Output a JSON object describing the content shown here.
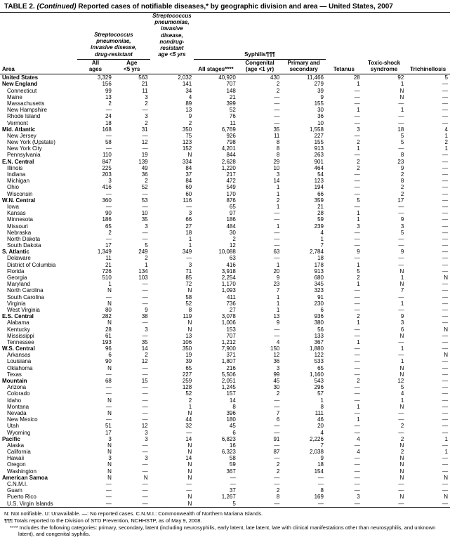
{
  "title_prefix": "TABLE 2.",
  "title_cont": "(Continued)",
  "title_rest": " Reported cases of notifiable diseases,* by geographic division and area — United States, 2007",
  "headers": {
    "strep_inv": "Streptococcus\npneumoniae,\ninvasive disease,\ndrug-resistant",
    "strep_noninv": "Streptococcus\npneumoniae,\ninvasive disease,\nnondrug-resistant\nage <5 yrs",
    "syphilis": "Syphilis¶¶¶",
    "area": "Area",
    "all_ages": "All\nages",
    "age_lt5": "Age\n<5 yrs",
    "all_stages": "All stages****",
    "congenital": "Congenital\n(age <1 yr)",
    "primary_secondary": "Primary and\nsecondary",
    "tetanus": "Tetanus",
    "toxic_shock": "Toxic-shock\nsyndrome",
    "trichinellosis": "Trichinellosis"
  },
  "rows": [
    {
      "t": "nation",
      "a": "United States",
      "v": [
        "3,329",
        "563",
        "2,032",
        "40,920",
        "430",
        "11,466",
        "28",
        "92",
        "5"
      ]
    },
    {
      "t": "region",
      "a": "New England",
      "v": [
        "156",
        "21",
        "141",
        "707",
        "2",
        "279",
        "1",
        "1",
        "—"
      ]
    },
    {
      "t": "sub",
      "a": "Connecticut",
      "v": [
        "99",
        "11",
        "34",
        "148",
        "2",
        "39",
        "—",
        "N",
        "—"
      ]
    },
    {
      "t": "sub",
      "a": "Maine",
      "v": [
        "13",
        "3",
        "4",
        "21",
        "—",
        "9",
        "—",
        "N",
        "—"
      ]
    },
    {
      "t": "sub",
      "a": "Massachusetts",
      "v": [
        "2",
        "2",
        "89",
        "399",
        "—",
        "155",
        "—",
        "—",
        "—"
      ]
    },
    {
      "t": "sub",
      "a": "New Hampshire",
      "v": [
        "—",
        "—",
        "13",
        "52",
        "—",
        "30",
        "1",
        "1",
        "—"
      ]
    },
    {
      "t": "sub",
      "a": "Rhode Island",
      "v": [
        "24",
        "3",
        "9",
        "76",
        "—",
        "36",
        "—",
        "—",
        "—"
      ]
    },
    {
      "t": "sub",
      "a": "Vermont",
      "v": [
        "18",
        "2",
        "2",
        "11",
        "—",
        "10",
        "—",
        "—",
        "—"
      ]
    },
    {
      "t": "region",
      "a": "Mid. Atlantic",
      "v": [
        "168",
        "31",
        "350",
        "6,769",
        "35",
        "1,558",
        "3",
        "18",
        "4"
      ]
    },
    {
      "t": "sub",
      "a": "New Jersey",
      "v": [
        "—",
        "—",
        "75",
        "926",
        "11",
        "227",
        "—",
        "5",
        "1"
      ]
    },
    {
      "t": "sub",
      "a": "New York (Upstate)",
      "v": [
        "58",
        "12",
        "123",
        "798",
        "8",
        "155",
        "2",
        "5",
        "2"
      ]
    },
    {
      "t": "sub",
      "a": "New York City",
      "v": [
        "—",
        "—",
        "152",
        "4,201",
        "8",
        "913",
        "1",
        "—",
        "1"
      ]
    },
    {
      "t": "sub",
      "a": "Pennsylvania",
      "v": [
        "110",
        "19",
        "N",
        "844",
        "8",
        "263",
        "—",
        "8",
        "—"
      ]
    },
    {
      "t": "region",
      "a": "E.N. Central",
      "v": [
        "847",
        "139",
        "334",
        "2,628",
        "29",
        "901",
        "2",
        "23",
        "—"
      ]
    },
    {
      "t": "sub",
      "a": "Illinois",
      "v": [
        "225",
        "49",
        "84",
        "1,220",
        "10",
        "464",
        "2",
        "9",
        "—"
      ]
    },
    {
      "t": "sub",
      "a": "Indiana",
      "v": [
        "203",
        "36",
        "37",
        "217",
        "3",
        "54",
        "—",
        "2",
        "—"
      ]
    },
    {
      "t": "sub",
      "a": "Michigan",
      "v": [
        "3",
        "2",
        "84",
        "472",
        "14",
        "123",
        "—",
        "8",
        "—"
      ]
    },
    {
      "t": "sub",
      "a": "Ohio",
      "v": [
        "416",
        "52",
        "69",
        "549",
        "1",
        "194",
        "—",
        "2",
        "—"
      ]
    },
    {
      "t": "sub",
      "a": "Wisconsin",
      "v": [
        "—",
        "—",
        "60",
        "170",
        "1",
        "66",
        "—",
        "2",
        "—"
      ]
    },
    {
      "t": "region",
      "a": "W.N. Central",
      "v": [
        "360",
        "53",
        "116",
        "876",
        "2",
        "359",
        "5",
        "17",
        "—"
      ]
    },
    {
      "t": "sub",
      "a": "Iowa",
      "v": [
        "—",
        "—",
        "—",
        "65",
        "1",
        "21",
        "—",
        "—",
        "—"
      ]
    },
    {
      "t": "sub",
      "a": "Kansas",
      "v": [
        "90",
        "10",
        "3",
        "97",
        "—",
        "28",
        "1",
        "—",
        "—"
      ]
    },
    {
      "t": "sub",
      "a": "Minnesota",
      "v": [
        "186",
        "35",
        "66",
        "186",
        "—",
        "59",
        "1",
        "9",
        "—"
      ]
    },
    {
      "t": "sub",
      "a": "Missouri",
      "v": [
        "65",
        "3",
        "27",
        "484",
        "1",
        "239",
        "3",
        "3",
        "—"
      ]
    },
    {
      "t": "sub",
      "a": "Nebraska",
      "v": [
        "2",
        "—",
        "18",
        "30",
        "—",
        "4",
        "—",
        "5",
        "—"
      ]
    },
    {
      "t": "sub",
      "a": "North Dakota",
      "v": [
        "—",
        "—",
        "1",
        "2",
        "—",
        "1",
        "—",
        "—",
        "—"
      ]
    },
    {
      "t": "sub",
      "a": "South Dakota",
      "v": [
        "17",
        "5",
        "1",
        "12",
        "—",
        "7",
        "—",
        "—",
        "—"
      ]
    },
    {
      "t": "region",
      "a": "S. Atlantic",
      "v": [
        "1,349",
        "249",
        "349",
        "10,088",
        "63",
        "2,784",
        "9",
        "9",
        "—"
      ]
    },
    {
      "t": "sub",
      "a": "Delaware",
      "v": [
        "11",
        "2",
        "—",
        "63",
        "—",
        "18",
        "—",
        "—",
        "—"
      ]
    },
    {
      "t": "sub",
      "a": "District of Columbia",
      "v": [
        "21",
        "1",
        "3",
        "416",
        "1",
        "178",
        "1",
        "—",
        "—"
      ]
    },
    {
      "t": "sub",
      "a": "Florida",
      "v": [
        "726",
        "134",
        "71",
        "3,918",
        "20",
        "913",
        "5",
        "N",
        "—"
      ]
    },
    {
      "t": "sub",
      "a": "Georgia",
      "v": [
        "510",
        "103",
        "85",
        "2,254",
        "9",
        "680",
        "2",
        "1",
        "N"
      ]
    },
    {
      "t": "sub",
      "a": "Maryland",
      "v": [
        "1",
        "—",
        "72",
        "1,170",
        "23",
        "345",
        "1",
        "N",
        "—"
      ]
    },
    {
      "t": "sub",
      "a": "North Carolina",
      "v": [
        "N",
        "—",
        "N",
        "1,093",
        "7",
        "323",
        "—",
        "7",
        "—"
      ]
    },
    {
      "t": "sub",
      "a": "South Carolina",
      "v": [
        "—",
        "—",
        "58",
        "411",
        "1",
        "91",
        "—",
        "—",
        "—"
      ]
    },
    {
      "t": "sub",
      "a": "Virginia",
      "v": [
        "N",
        "—",
        "52",
        "736",
        "1",
        "230",
        "—",
        "1",
        "—"
      ]
    },
    {
      "t": "sub",
      "a": "West Virginia",
      "v": [
        "80",
        "9",
        "8",
        "27",
        "1",
        "6",
        "—",
        "—",
        "—"
      ]
    },
    {
      "t": "region",
      "a": "E.S. Central",
      "v": [
        "282",
        "38",
        "119",
        "3,078",
        "13",
        "936",
        "2",
        "9",
        "—"
      ]
    },
    {
      "t": "sub",
      "a": "Alabama",
      "v": [
        "N",
        "—",
        "N",
        "1,006",
        "9",
        "380",
        "1",
        "3",
        "—"
      ]
    },
    {
      "t": "sub",
      "a": "Kentucky",
      "v": [
        "28",
        "3",
        "N",
        "153",
        "—",
        "56",
        "—",
        "6",
        "N"
      ]
    },
    {
      "t": "sub",
      "a": "Mississippi",
      "v": [
        "61",
        "—",
        "13",
        "707",
        "—",
        "133",
        "—",
        "N",
        "—"
      ]
    },
    {
      "t": "sub",
      "a": "Tennessee",
      "v": [
        "193",
        "35",
        "106",
        "1,212",
        "4",
        "367",
        "1",
        "—",
        "—"
      ]
    },
    {
      "t": "region",
      "a": "W.S. Central",
      "v": [
        "96",
        "14",
        "350",
        "7,900",
        "150",
        "1,880",
        "—",
        "1",
        "—"
      ]
    },
    {
      "t": "sub",
      "a": "Arkansas",
      "v": [
        "6",
        "2",
        "19",
        "371",
        "12",
        "122",
        "—",
        "—",
        "N"
      ]
    },
    {
      "t": "sub",
      "a": "Louisiana",
      "v": [
        "90",
        "12",
        "39",
        "1,807",
        "36",
        "533",
        "—",
        "1",
        "—"
      ]
    },
    {
      "t": "sub",
      "a": "Oklahoma",
      "v": [
        "N",
        "—",
        "65",
        "216",
        "3",
        "65",
        "—",
        "N",
        "—"
      ]
    },
    {
      "t": "sub",
      "a": "Texas",
      "v": [
        "—",
        "—",
        "227",
        "5,506",
        "99",
        "1,160",
        "—",
        "N",
        "—"
      ]
    },
    {
      "t": "region",
      "a": "Mountain",
      "v": [
        "68",
        "15",
        "259",
        "2,051",
        "45",
        "543",
        "2",
        "12",
        "—"
      ]
    },
    {
      "t": "sub",
      "a": "Arizona",
      "v": [
        "—",
        "—",
        "128",
        "1,245",
        "30",
        "296",
        "—",
        "5",
        "—"
      ]
    },
    {
      "t": "sub",
      "a": "Colorado",
      "v": [
        "—",
        "—",
        "52",
        "157",
        "2",
        "57",
        "—",
        "4",
        "—"
      ]
    },
    {
      "t": "sub",
      "a": "Idaho",
      "v": [
        "N",
        "—",
        "2",
        "14",
        "—",
        "1",
        "—",
        "1",
        "—"
      ]
    },
    {
      "t": "sub",
      "a": "Montana",
      "v": [
        "—",
        "—",
        "1",
        "8",
        "—",
        "8",
        "1",
        "N",
        "—"
      ]
    },
    {
      "t": "sub",
      "a": "Nevada",
      "v": [
        "N",
        "—",
        "N",
        "396",
        "7",
        "111",
        "—",
        "—",
        "—"
      ]
    },
    {
      "t": "sub",
      "a": "New Mexico",
      "v": [
        "—",
        "—",
        "44",
        "180",
        "6",
        "46",
        "1",
        "—",
        "—"
      ]
    },
    {
      "t": "sub",
      "a": "Utah",
      "v": [
        "51",
        "12",
        "32",
        "45",
        "—",
        "20",
        "—",
        "2",
        "—"
      ]
    },
    {
      "t": "sub",
      "a": "Wyoming",
      "v": [
        "17",
        "3",
        "—",
        "6",
        "—",
        "4",
        "—",
        "—",
        "—"
      ]
    },
    {
      "t": "region",
      "a": "Pacific",
      "v": [
        "3",
        "3",
        "14",
        "6,823",
        "91",
        "2,226",
        "4",
        "2",
        "1"
      ]
    },
    {
      "t": "sub",
      "a": "Alaska",
      "v": [
        "N",
        "—",
        "N",
        "16",
        "—",
        "7",
        "—",
        "N",
        "—"
      ]
    },
    {
      "t": "sub",
      "a": "California",
      "v": [
        "N",
        "—",
        "N",
        "6,323",
        "87",
        "2,038",
        "4",
        "2",
        "1"
      ]
    },
    {
      "t": "sub",
      "a": "Hawaii",
      "v": [
        "3",
        "3",
        "14",
        "58",
        "—",
        "9",
        "—",
        "N",
        "—"
      ]
    },
    {
      "t": "sub",
      "a": "Oregon",
      "v": [
        "N",
        "—",
        "N",
        "59",
        "2",
        "18",
        "—",
        "N",
        "—"
      ]
    },
    {
      "t": "sub",
      "a": "Washington",
      "v": [
        "N",
        "—",
        "N",
        "367",
        "2",
        "154",
        "—",
        "N",
        "—"
      ]
    },
    {
      "t": "region",
      "a": "American Samoa",
      "v": [
        "N",
        "N",
        "N",
        "—",
        "—",
        "—",
        "—",
        "N",
        "N"
      ]
    },
    {
      "t": "sub",
      "a": "C.N.M.I.",
      "v": [
        "—",
        "—",
        "—",
        "—",
        "—",
        "—",
        "—",
        "—",
        "—"
      ]
    },
    {
      "t": "sub",
      "a": "Guam",
      "v": [
        "—",
        "—",
        "—",
        "37",
        "2",
        "8",
        "—",
        "—",
        "—"
      ]
    },
    {
      "t": "sub",
      "a": "Puerto Rico",
      "v": [
        "—",
        "—",
        "N",
        "1,267",
        "8",
        "169",
        "3",
        "N",
        "N"
      ]
    },
    {
      "t": "sub",
      "a": "U.S. Virgin Islands",
      "v": [
        "—",
        "—",
        "N",
        "5",
        "—",
        "—",
        "—",
        "—",
        "—"
      ]
    }
  ],
  "footnotes": [
    "N: Not notifiable.     U: Unavailable.     —: No reported cases.     C.N.M.I.: Commonwealth of Northern Mariana Islands.",
    " ¶¶¶ Totals reported to the Division of STD Prevention, NCHHSTP, as of May 9, 2008.",
    "**** Includes the following categories: primary, secondary, latent (including neurosyphilis, early latent, late latent, late with clinical manifestations other than neurosyphilis, and unknown latent), and congenital syphilis."
  ]
}
